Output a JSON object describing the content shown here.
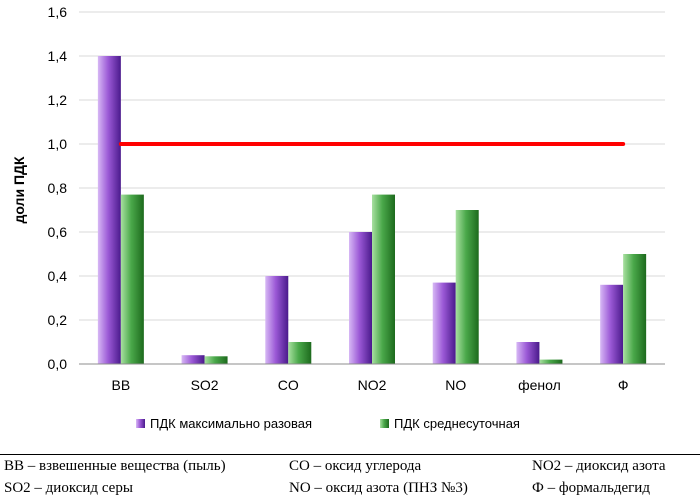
{
  "chart_data": {
    "type": "bar",
    "ylabel": "доли ПДК",
    "ylim": [
      0,
      1.6
    ],
    "yticks": [
      "0,0",
      "0,2",
      "0,4",
      "0,6",
      "0,8",
      "1,0",
      "1,2",
      "1,4",
      "1,6"
    ],
    "categories": [
      "ВВ",
      "SO2",
      "CO",
      "NO2",
      "NO",
      "фенол",
      "Ф"
    ],
    "series": [
      {
        "name": "ПДК максимально разовая",
        "values": [
          1.4,
          0.04,
          0.4,
          0.6,
          0.37,
          0.1,
          0.36
        ]
      },
      {
        "name": "ПДК среднесуточная",
        "values": [
          0.77,
          0.035,
          0.1,
          0.77,
          0.7,
          0.02,
          0.5
        ]
      }
    ],
    "reference_line": {
      "value": 1.0,
      "color": "#ff0000"
    },
    "colors": {
      "series1": "#7b3fbf",
      "series2": "#3c9a3c",
      "grid": "#d9d9d9"
    },
    "grid": true,
    "legend_position": "bottom"
  },
  "notes": [
    [
      "ВВ – взвешенные вещества (пыль)",
      "CO – оксид углерода",
      "NO2 – диоксид азота"
    ],
    [
      "SO2 – диоксид серы",
      "NO – оксид азота (ПНЗ №3)",
      "Ф – формальдегид"
    ]
  ]
}
